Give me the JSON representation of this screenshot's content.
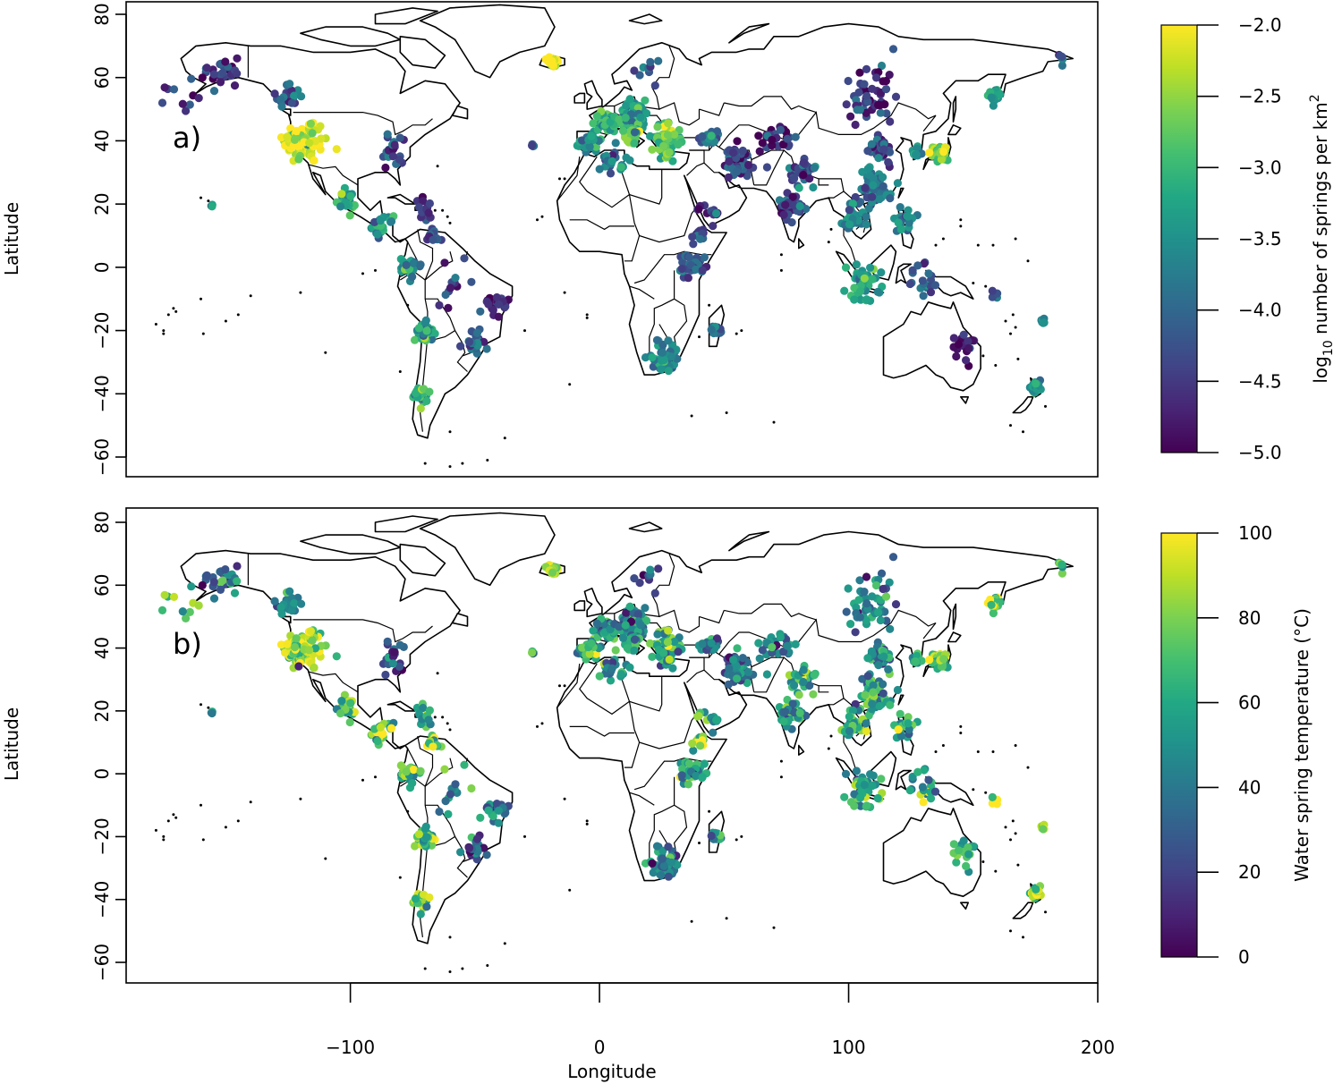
{
  "figure": {
    "x_axis_label": "Longitude",
    "x_ticks": [
      -100,
      0,
      100,
      200
    ],
    "x_tick_labels": [
      "−100",
      "0",
      "100",
      "200"
    ],
    "y_ticks": [
      -60,
      -40,
      -20,
      0,
      20,
      40,
      60,
      80
    ],
    "y_tick_labels": [
      "−60",
      "−40",
      "−20",
      "0",
      "20",
      "40",
      "60",
      "80"
    ],
    "x_range": [
      -190,
      200
    ],
    "y_range": [
      -66,
      84
    ]
  },
  "panels": [
    {
      "id": "a",
      "label": "a)",
      "y_axis_label": "Latitude",
      "colorbar": {
        "title_prefix": "log",
        "title_sub": "10",
        "title_main": " number of springs per km",
        "title_sup": "2",
        "ticks": [
          -5.0,
          -4.5,
          -4.0,
          -3.5,
          -3.0,
          -2.5,
          -2.0
        ],
        "tick_labels": [
          "−5.0",
          "−4.5",
          "−4.0",
          "−3.5",
          "−3.0",
          "−2.5",
          "−2.0"
        ],
        "range": [
          -5.0,
          -2.0
        ],
        "colormap": "viridis"
      }
    },
    {
      "id": "b",
      "label": "b)",
      "y_axis_label": "Latitude",
      "colorbar": {
        "title": "Water spring temperature (°C)",
        "ticks": [
          0,
          20,
          40,
          60,
          80,
          100
        ],
        "tick_labels": [
          "0",
          "20",
          "40",
          "60",
          "80",
          "100"
        ],
        "range": [
          0,
          100
        ],
        "colormap": "viridis"
      }
    }
  ],
  "spring_clusters": [
    {
      "region": "western-usa",
      "lon": -118,
      "lat": 40,
      "spread": 9,
      "n": 90,
      "density": -2.2,
      "temp": 85
    },
    {
      "region": "alaska",
      "lon": -152,
      "lat": 62,
      "spread": 8,
      "n": 30,
      "density": -4.5,
      "temp": 35
    },
    {
      "region": "aleutians",
      "lon": -168,
      "lat": 54,
      "spread": 6,
      "n": 10,
      "density": -4.7,
      "temp": 70
    },
    {
      "region": "western-canada",
      "lon": -125,
      "lat": 54,
      "spread": 5,
      "n": 22,
      "density": -3.9,
      "temp": 45
    },
    {
      "region": "eastern-usa",
      "lon": -82,
      "lat": 37,
      "spread": 7,
      "n": 20,
      "density": -4.2,
      "temp": 30
    },
    {
      "region": "hawaii",
      "lon": -156,
      "lat": 20,
      "spread": 1,
      "n": 3,
      "density": -4.0,
      "temp": 25
    },
    {
      "region": "mexico",
      "lon": -102,
      "lat": 21,
      "spread": 4,
      "n": 30,
      "density": -3.3,
      "temp": 70
    },
    {
      "region": "central-america",
      "lon": -87,
      "lat": 13,
      "spread": 4,
      "n": 22,
      "density": -3.5,
      "temp": 80
    },
    {
      "region": "caribbean",
      "lon": -70,
      "lat": 18,
      "spread": 5,
      "n": 14,
      "density": -4.4,
      "temp": 60
    },
    {
      "region": "venezuela",
      "lon": -67,
      "lat": 9,
      "spread": 4,
      "n": 12,
      "density": -4.2,
      "temp": 75
    },
    {
      "region": "andes-north",
      "lon": -76,
      "lat": 0,
      "spread": 4,
      "n": 25,
      "density": -3.6,
      "temp": 65
    },
    {
      "region": "andes-central",
      "lon": -70,
      "lat": -20,
      "spread": 4,
      "n": 30,
      "density": -3.4,
      "temp": 70
    },
    {
      "region": "andes-south",
      "lon": -71,
      "lat": -40,
      "spread": 3,
      "n": 28,
      "density": -3.2,
      "temp": 65
    },
    {
      "region": "brazil-east",
      "lon": -42,
      "lat": -12,
      "spread": 6,
      "n": 25,
      "density": -4.7,
      "temp": 35
    },
    {
      "region": "brazil-south",
      "lon": -50,
      "lat": -24,
      "spread": 5,
      "n": 22,
      "density": -4.0,
      "temp": 40
    },
    {
      "region": "amazon",
      "lon": -58,
      "lat": -5,
      "spread": 8,
      "n": 12,
      "density": -4.5,
      "temp": 40
    },
    {
      "region": "iceland",
      "lon": -19,
      "lat": 65,
      "spread": 2,
      "n": 25,
      "density": -2.0,
      "temp": 90
    },
    {
      "region": "azores",
      "lon": -27,
      "lat": 38.5,
      "spread": 1,
      "n": 4,
      "density": -4.2,
      "temp": 75
    },
    {
      "region": "iberia",
      "lon": -4,
      "lat": 40,
      "spread": 4,
      "n": 40,
      "density": -3.4,
      "temp": 55
    },
    {
      "region": "france",
      "lon": 3,
      "lat": 46,
      "spread": 4,
      "n": 50,
      "density": -3.0,
      "temp": 50
    },
    {
      "region": "central-europe",
      "lon": 14,
      "lat": 48,
      "spread": 6,
      "n": 80,
      "density": -3.2,
      "temp": 45
    },
    {
      "region": "italy",
      "lon": 13,
      "lat": 42,
      "spread": 3,
      "n": 40,
      "density": -2.9,
      "temp": 65
    },
    {
      "region": "balkans-turkey",
      "lon": 27,
      "lat": 40,
      "spread": 6,
      "n": 70,
      "density": -2.8,
      "temp": 60
    },
    {
      "region": "caucasus",
      "lon": 44,
      "lat": 41,
      "spread": 4,
      "n": 30,
      "density": -3.9,
      "temp": 45
    },
    {
      "region": "scandinavia",
      "lon": 20,
      "lat": 62,
      "spread": 5,
      "n": 10,
      "density": -4.3,
      "temp": 25
    },
    {
      "region": "north-africa",
      "lon": 5,
      "lat": 34,
      "spread": 5,
      "n": 22,
      "density": -3.7,
      "temp": 50
    },
    {
      "region": "east-african-rift",
      "lon": 37,
      "lat": 0,
      "spread": 6,
      "n": 35,
      "density": -4.1,
      "temp": 60
    },
    {
      "region": "ethiopia",
      "lon": 40,
      "lat": 10,
      "spread": 3,
      "n": 12,
      "density": -4.3,
      "temp": 75
    },
    {
      "region": "arabia",
      "lon": 44,
      "lat": 18,
      "spread": 5,
      "n": 12,
      "density": -4.4,
      "temp": 60
    },
    {
      "region": "southern-africa",
      "lon": 26,
      "lat": -28,
      "spread": 5,
      "n": 45,
      "density": -3.7,
      "temp": 45
    },
    {
      "region": "madagascar",
      "lon": 47,
      "lat": -20,
      "spread": 2,
      "n": 12,
      "density": -4.0,
      "temp": 45
    },
    {
      "region": "iran",
      "lon": 55,
      "lat": 33,
      "spread": 6,
      "n": 40,
      "density": -4.4,
      "temp": 45
    },
    {
      "region": "central-asia",
      "lon": 72,
      "lat": 40,
      "spread": 8,
      "n": 30,
      "density": -4.6,
      "temp": 40
    },
    {
      "region": "himalaya",
      "lon": 82,
      "lat": 30,
      "spread": 6,
      "n": 30,
      "density": -4.2,
      "temp": 60
    },
    {
      "region": "india",
      "lon": 77,
      "lat": 20,
      "spread": 5,
      "n": 35,
      "density": -4.3,
      "temp": 50
    },
    {
      "region": "china-south",
      "lon": 110,
      "lat": 25,
      "spread": 7,
      "n": 60,
      "density": -3.9,
      "temp": 55
    },
    {
      "region": "china-north",
      "lon": 113,
      "lat": 38,
      "spread": 6,
      "n": 40,
      "density": -4.3,
      "temp": 45
    },
    {
      "region": "siberia",
      "lon": 110,
      "lat": 55,
      "spread": 12,
      "n": 35,
      "density": -4.6,
      "temp": 45
    },
    {
      "region": "baikal",
      "lon": 106,
      "lat": 52,
      "spread": 5,
      "n": 18,
      "density": -4.5,
      "temp": 50
    },
    {
      "region": "korea",
      "lon": 127,
      "lat": 36,
      "spread": 2,
      "n": 12,
      "density": -3.5,
      "temp": 55
    },
    {
      "region": "japan",
      "lon": 137,
      "lat": 36,
      "spread": 3,
      "n": 60,
      "density": -2.6,
      "temp": 75
    },
    {
      "region": "kamchatka",
      "lon": 158,
      "lat": 54,
      "spread": 3,
      "n": 22,
      "density": -3.3,
      "temp": 80
    },
    {
      "region": "taiwan-philippines",
      "lon": 122,
      "lat": 15,
      "spread": 5,
      "n": 20,
      "density": -3.6,
      "temp": 65
    },
    {
      "region": "sumatra-java",
      "lon": 106,
      "lat": -5,
      "spread": 7,
      "n": 45,
      "density": -3.3,
      "temp": 60
    },
    {
      "region": "indochina",
      "lon": 101,
      "lat": 15,
      "spread": 5,
      "n": 30,
      "density": -3.6,
      "temp": 60
    },
    {
      "region": "sulawesi-papua",
      "lon": 130,
      "lat": -4,
      "spread": 8,
      "n": 20,
      "density": -4.0,
      "temp": 55
    },
    {
      "region": "eastern-australia",
      "lon": 146,
      "lat": -25,
      "spread": 5,
      "n": 22,
      "density": -4.8,
      "temp": 60
    },
    {
      "region": "new-zealand",
      "lon": 175,
      "lat": -38,
      "spread": 2,
      "n": 25,
      "density": -3.6,
      "temp": 90
    },
    {
      "region": "fiji",
      "lon": 178,
      "lat": -17,
      "spread": 1,
      "n": 6,
      "density": -3.5,
      "temp": 85
    },
    {
      "region": "solomons",
      "lon": 158,
      "lat": -8,
      "spread": 2,
      "n": 4,
      "density": -4.2,
      "temp": 90
    },
    {
      "region": "chukotka",
      "lon": 186,
      "lat": 66,
      "spread": 2,
      "n": 5,
      "density": -3.9,
      "temp": 80
    }
  ]
}
